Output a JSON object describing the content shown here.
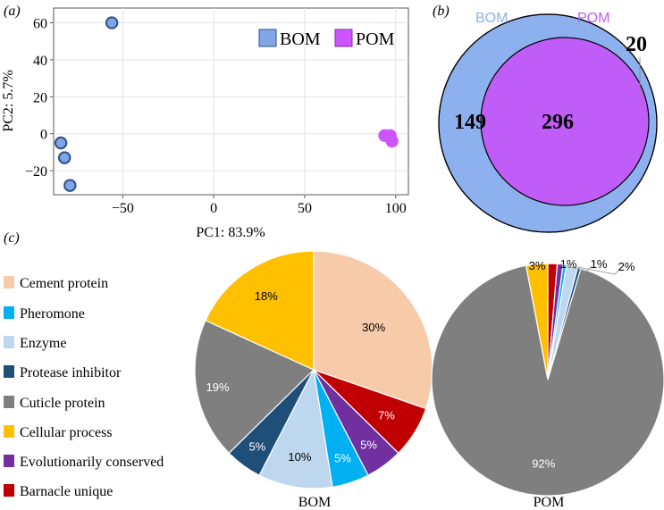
{
  "chart_data": [
    {
      "type": "scatter",
      "panel_label": "(a)",
      "xlabel": "PC1: 83.9%",
      "ylabel": "PC2: 5.7%",
      "xlim": [
        -88,
        107
      ],
      "ylim": [
        -33,
        68
      ],
      "xticks": [
        -50,
        0,
        50,
        100
      ],
      "yticks": [
        -20,
        0,
        20,
        40,
        60
      ],
      "grid": true,
      "legend_position": "top-right",
      "series": [
        {
          "name": "BOM",
          "color": "#7fa6e6",
          "edge": "#2e4f8c",
          "points": [
            [
              -56,
              60
            ],
            [
              -84,
              -5
            ],
            [
              -82,
              -13
            ],
            [
              -79,
              -28
            ]
          ]
        },
        {
          "name": "POM",
          "color": "#cc55ff",
          "edge": "#cc55ff",
          "points": [
            [
              94,
              -1
            ],
            [
              97,
              -1
            ],
            [
              98,
              -4
            ]
          ]
        }
      ]
    },
    {
      "type": "venn",
      "panel_label": "(b)",
      "sets": [
        {
          "name": "BOM",
          "color": "#8db1ee",
          "label_color": "#8db1ee"
        },
        {
          "name": "POM",
          "color": "#c05cf8",
          "label_color": "#c05cf8"
        }
      ],
      "counts": {
        "BOM_only": "149",
        "both": "296",
        "POM_only": "20"
      }
    },
    {
      "type": "pie",
      "panel_label": "(c)",
      "title": "BOM",
      "categories": [
        "Cement protein",
        "Barnacle unique",
        "Evolutionarily conserved",
        "Pheromone",
        "Enzyme",
        "Protease inhibitor",
        "Cuticle protein",
        "Cellular process"
      ],
      "values": [
        30,
        7,
        5,
        5,
        10,
        5,
        19,
        18
      ],
      "labels": [
        "30%",
        "7%",
        "5%",
        "5%",
        "10%",
        "5%",
        "19%",
        "18%"
      ]
    },
    {
      "type": "pie",
      "title": "POM",
      "categories": [
        "Barnacle unique",
        "Evolutionarily conserved",
        "Pheromone",
        "Enzyme",
        "Protease inhibitor",
        "Cuticle protein",
        "Cellular process"
      ],
      "values": [
        1.3,
        0.8,
        0.45,
        1.6,
        0.45,
        92.4,
        3.0
      ],
      "labels": [
        "1%",
        "1%",
        "",
        "2%",
        "",
        "92%",
        "3%"
      ]
    }
  ],
  "legend": {
    "items": [
      {
        "label": "Cement protein",
        "color": "#f7cbaa"
      },
      {
        "label": "Pheromone",
        "color": "#00b0f0"
      },
      {
        "label": "Enzyme",
        "color": "#bdd7ee"
      },
      {
        "label": "Protease inhibitor",
        "color": "#1f4e79"
      },
      {
        "label": "Cuticle protein",
        "color": "#7f7f7f"
      },
      {
        "label": "Cellular process",
        "color": "#ffc000"
      },
      {
        "label": "Evolutionarily conserved",
        "color": "#7030a0"
      },
      {
        "label": "Barnacle unique",
        "color": "#c00000"
      }
    ]
  }
}
